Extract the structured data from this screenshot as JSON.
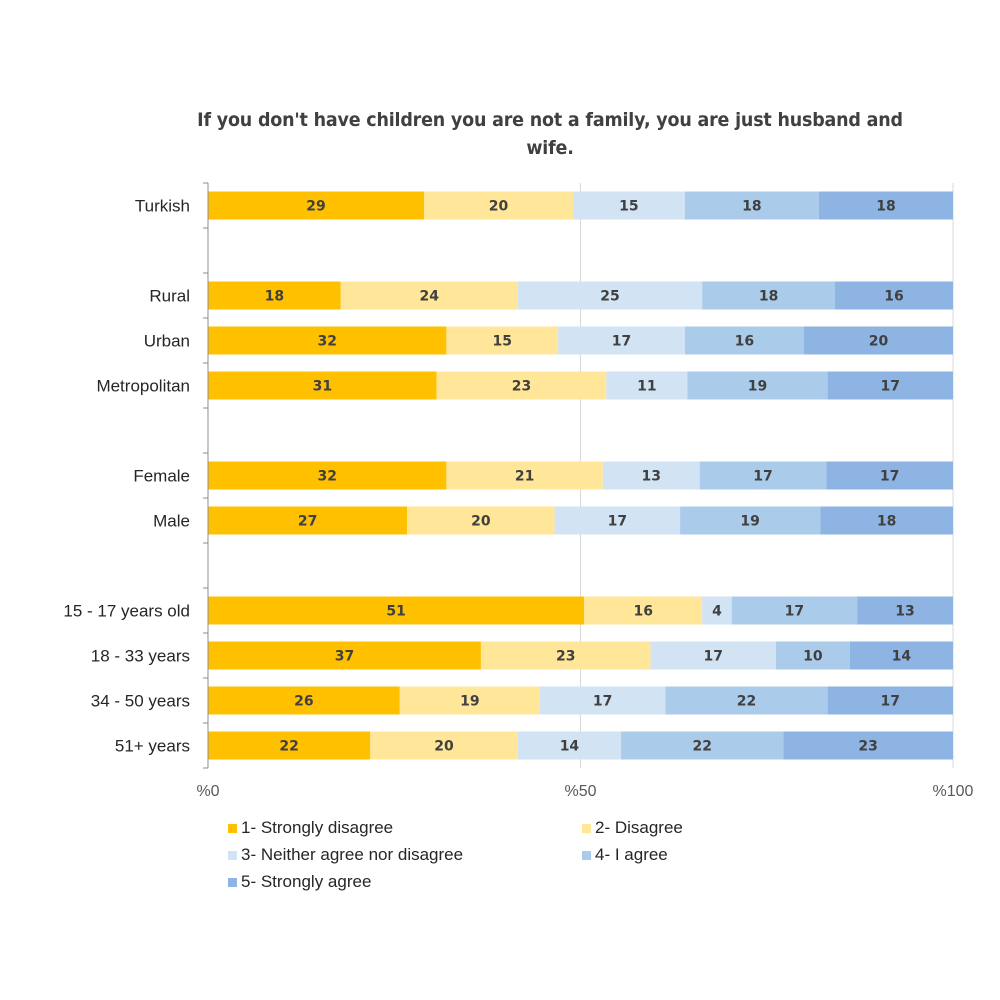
{
  "chart_data": {
    "type": "bar",
    "orientation": "horizontal",
    "stacked": "percent",
    "title": "If you don't have children you are not a family, you are just husband and wife.",
    "xlabel": "",
    "ylabel": "",
    "xlim": [
      0,
      100
    ],
    "x_ticks": [
      "%0",
      "%50",
      "%100"
    ],
    "grid": true,
    "legend_position": "bottom",
    "categories": [
      "Turkish",
      "",
      "Rural",
      "Urban",
      "Metropolitan",
      "",
      "Female",
      "Male",
      "",
      "15 - 17 years old",
      "18 - 33 years",
      "34 - 50 years",
      "51+ years"
    ],
    "series": [
      {
        "name": "1- Strongly disagree",
        "color": "#FFC000",
        "values": [
          29,
          null,
          18,
          32,
          31,
          null,
          32,
          27,
          null,
          51,
          37,
          26,
          22
        ]
      },
      {
        "name": "2- Disagree",
        "color": "#FFE699",
        "values": [
          20,
          null,
          24,
          15,
          23,
          null,
          21,
          20,
          null,
          16,
          23,
          19,
          20
        ]
      },
      {
        "name": "3- Neither agree nor disagree",
        "color": "#D2E3F4",
        "values": [
          15,
          null,
          25,
          17,
          11,
          null,
          13,
          17,
          null,
          4,
          17,
          17,
          14
        ]
      },
      {
        "name": "4- I agree",
        "color": "#ABCBEA",
        "values": [
          18,
          null,
          18,
          16,
          19,
          null,
          17,
          19,
          null,
          17,
          10,
          22,
          22
        ]
      },
      {
        "name": "5- Strongly agree",
        "color": "#8DB4E2",
        "values": [
          18,
          null,
          16,
          20,
          17,
          null,
          17,
          18,
          null,
          13,
          14,
          17,
          23
        ]
      }
    ]
  }
}
